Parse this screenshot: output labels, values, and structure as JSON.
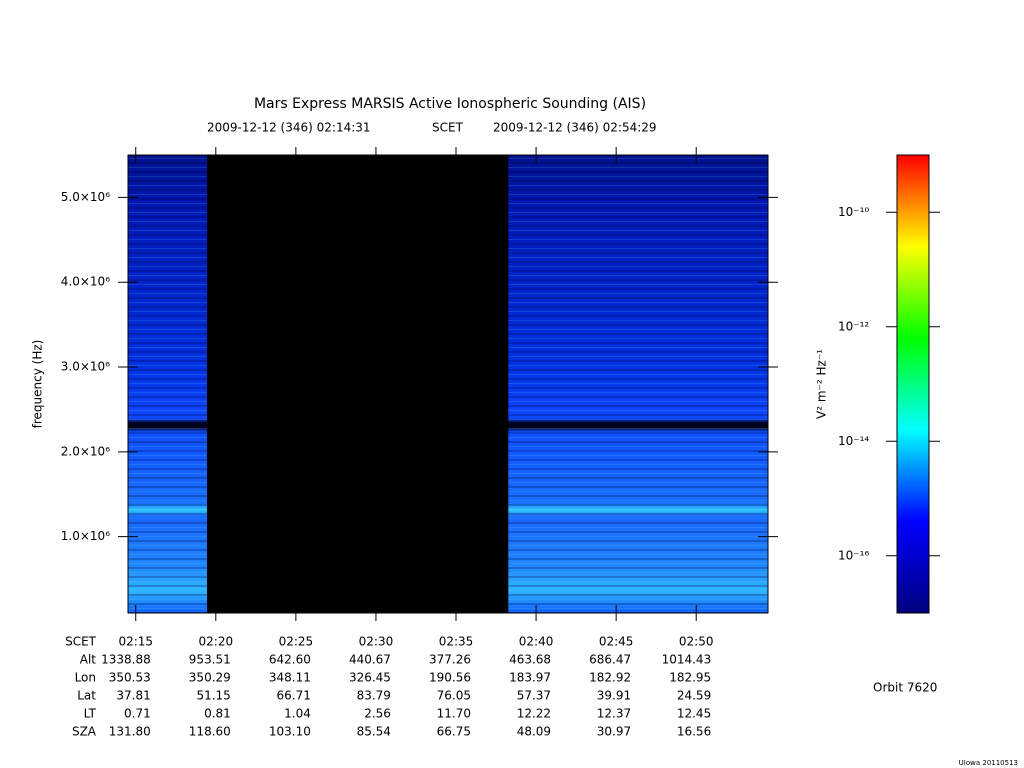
{
  "chart_data": {
    "type": "spectrogram",
    "title": "Mars Express MARSIS Active Ionospheric Sounding (AIS)",
    "subtitle": [
      "2009-12-12 (346) 02:14:31",
      "SCET",
      "2009-12-12 (346) 02:54:29"
    ],
    "ylabel": "frequency (Hz)",
    "xlim": [
      "02:14:31",
      "02:54:29"
    ],
    "xticks": [
      "02:15",
      "02:20",
      "02:25",
      "02:30",
      "02:35",
      "02:40",
      "02:45",
      "02:50"
    ],
    "ylim": [
      100000,
      5500000
    ],
    "yticks": [
      {
        "value": 1000000,
        "label": "1.0×10⁶"
      },
      {
        "value": 2000000,
        "label": "2.0×10⁶"
      },
      {
        "value": 3000000,
        "label": "3.0×10⁶"
      },
      {
        "value": 4000000,
        "label": "4.0×10⁶"
      },
      {
        "value": 5000000,
        "label": "5.0×10⁶"
      }
    ],
    "segments": [
      {
        "start": "02:14:31",
        "end": "02:19:27"
      },
      {
        "start": "02:38:16",
        "end": "02:54:29"
      }
    ],
    "colorbar": {
      "label": "V² m⁻² Hz⁻¹",
      "log": true,
      "zlim": [
        1e-17,
        1e-09
      ],
      "ticks": [
        {
          "value": 1e-16,
          "label": "10⁻¹⁶"
        },
        {
          "value": 1e-14,
          "label": "10⁻¹⁴"
        },
        {
          "value": 1e-12,
          "label": "10⁻¹²"
        },
        {
          "value": 1e-10,
          "label": "10⁻¹⁰"
        }
      ],
      "colors": [
        "#00007f",
        "#0000ff",
        "#00ffff",
        "#00ff00",
        "#ffff00",
        "#ff0000"
      ]
    },
    "ephemeris": {
      "time_label": "SCET",
      "rows": [
        {
          "name": "Alt",
          "values": [
            "1338.88",
            "953.51",
            "642.60",
            "440.67",
            "377.26",
            "463.68",
            "686.47",
            "1014.43"
          ]
        },
        {
          "name": "Lon",
          "values": [
            "350.53",
            "350.29",
            "348.11",
            "326.45",
            "190.56",
            "183.97",
            "182.92",
            "182.95"
          ]
        },
        {
          "name": "Lat",
          "values": [
            "37.81",
            "51.15",
            "66.71",
            "83.79",
            "76.05",
            "57.37",
            "39.91",
            "24.59"
          ]
        },
        {
          "name": "LT",
          "values": [
            "0.71",
            "0.81",
            "1.04",
            "2.56",
            "11.70",
            "12.22",
            "12.37",
            "12.45"
          ]
        },
        {
          "name": "SZA",
          "values": [
            "131.80",
            "118.60",
            "103.10",
            "85.54",
            "66.75",
            "48.09",
            "30.97",
            "16.56"
          ]
        }
      ]
    }
  },
  "orbit": "Orbit 7620",
  "footer": "UIowa 20110513"
}
